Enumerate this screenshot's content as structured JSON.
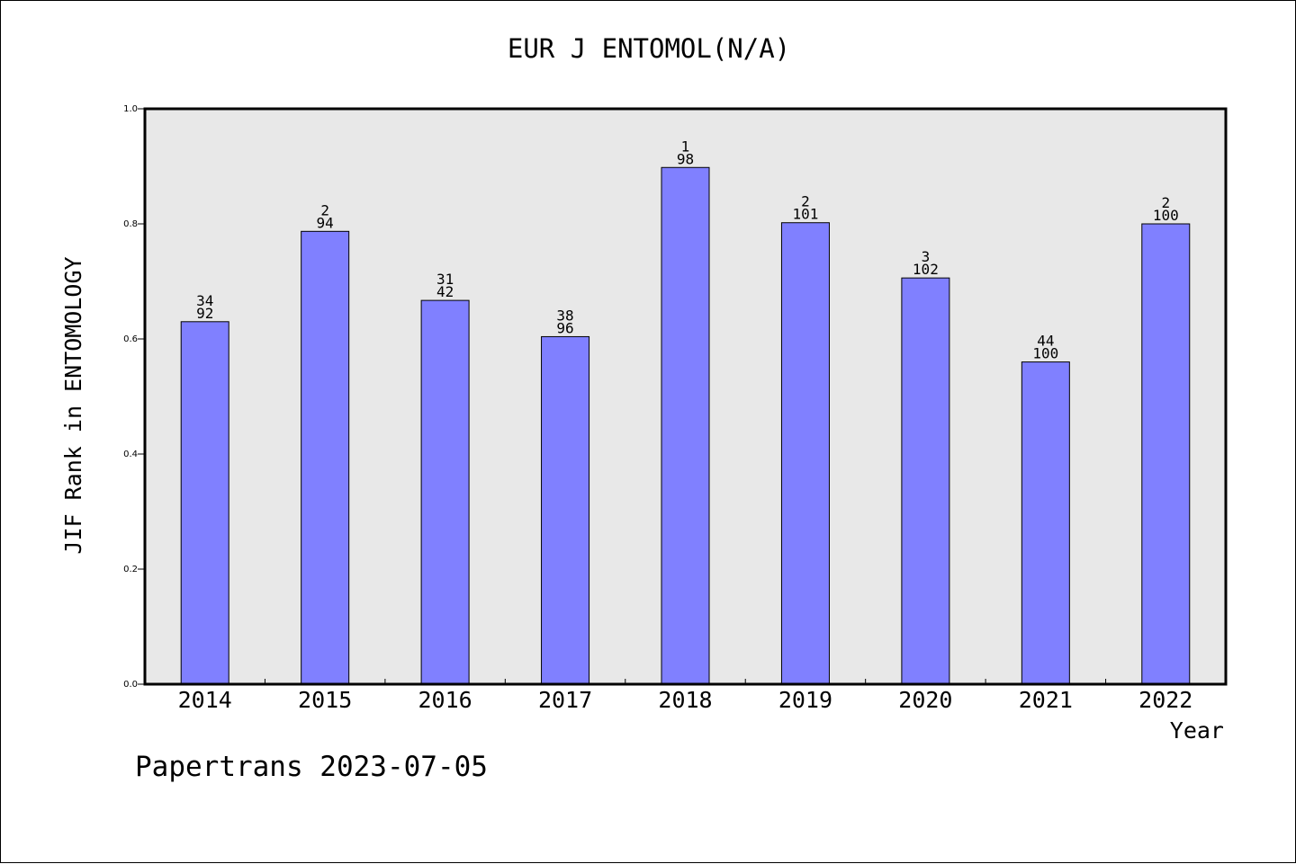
{
  "title": "EUR J ENTOMOL(N/A)",
  "footer": "Papertrans 2023-07-05",
  "colors": {
    "bar": "#8080ff",
    "plot_background": "#e8e8e8"
  },
  "chart_data": {
    "type": "bar",
    "title": "EUR J ENTOMOL(N/A)",
    "xlabel": "Year",
    "ylabel": "JIF Rank in ENTOMOLOGY",
    "ylim": [
      0,
      1.0
    ],
    "yticks": [
      "0.0",
      "0.2",
      "0.4",
      "0.6",
      "0.8",
      "1.0"
    ],
    "grid": false,
    "categories": [
      "2014",
      "2015",
      "2016",
      "2017",
      "2018",
      "2019",
      "2020",
      "2021",
      "2022"
    ],
    "values": [
      0.63,
      0.787,
      0.667,
      0.604,
      0.898,
      0.802,
      0.706,
      0.56,
      0.8
    ],
    "rank_labels": [
      "34",
      "2",
      "31",
      "38",
      "1",
      "2",
      "3",
      "44",
      "2"
    ],
    "total_labels": [
      "92",
      "94",
      "42",
      "96",
      "98",
      "101",
      "102",
      "100",
      "100"
    ]
  }
}
